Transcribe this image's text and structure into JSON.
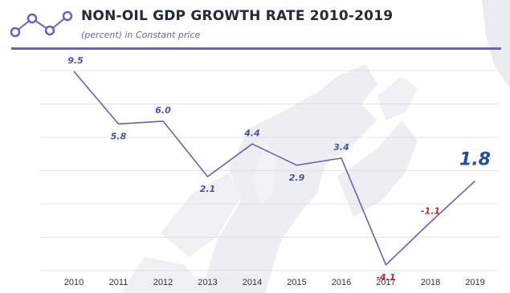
{
  "header": {
    "title": "NON-OIL GDP GROWTH RATE  2010-2019",
    "subtitle": "(percent) in Constant price"
  },
  "colors": {
    "line": "#6a5fc2",
    "positive_label": "#4a52a8",
    "negative_label": "#e02020",
    "highlight_label": "#1e4fa3",
    "title": "#222a3c",
    "rule": "#6a5fc2"
  },
  "chart_data": {
    "type": "line",
    "title": "NON-OIL GDP GROWTH RATE  2010-2019",
    "subtitle": "(percent) in Constant price",
    "xlabel": "",
    "ylabel": "",
    "categories": [
      "2010",
      "2011",
      "2012",
      "2013",
      "2014",
      "2015",
      "2016",
      "2017",
      "2018",
      "2019"
    ],
    "series": [
      {
        "values": [
          9.5,
          5.8,
          6.0,
          2.1,
          4.4,
          2.9,
          3.4,
          -4.1,
          -1.1,
          1.8
        ],
        "data_labels": [
          "9.5",
          "5.8",
          "6.0",
          "2.1",
          "4.4",
          "2.9",
          "3.4",
          "-4.1",
          "-1.1",
          "1.8"
        ]
      }
    ],
    "ylim": [
      -4.5,
      10
    ],
    "grid": true,
    "legend": "none",
    "highlight_last": true
  }
}
